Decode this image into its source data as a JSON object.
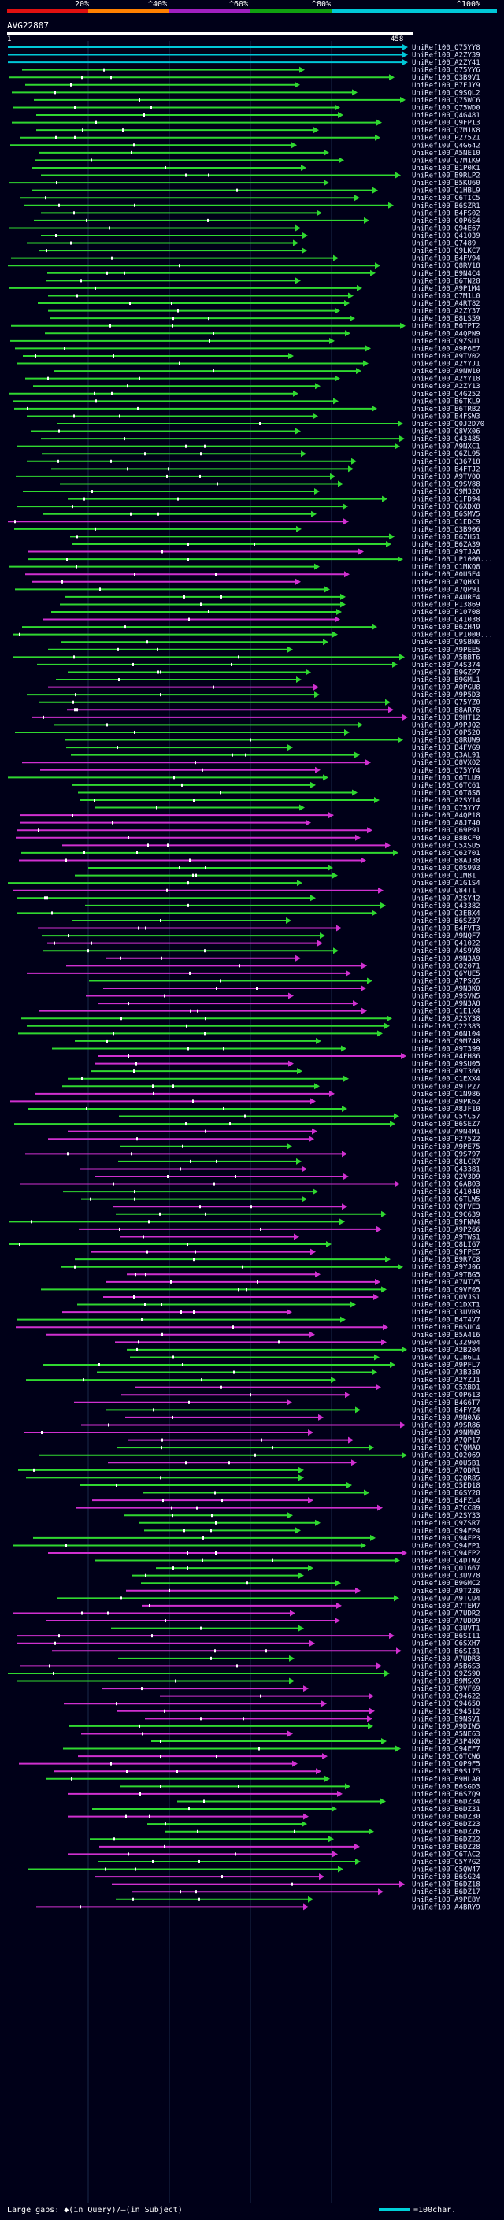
{
  "query": {
    "id": "AVG22807",
    "start": "1",
    "end": "458"
  },
  "scale": {
    "labels": [
      "20%",
      "^40%",
      "^60%",
      "^80%",
      "^100%"
    ],
    "colors": [
      "#e01010",
      "#ff8000",
      "#a020c0",
      "#10a010",
      "#00c8d8"
    ]
  },
  "colors": {
    "high_identity": "#30d830",
    "medium_identity": "#d030d0",
    "top_identity": "#00c8d8",
    "tick": "#ffffff"
  },
  "hits": [
    "UniRef100_Q75YY8",
    "UniRef100_A2ZY39",
    "UniRef100_A2ZY41",
    "UniRef100_Q75YY6",
    "UniRef100_Q3B9V1",
    "UniRef100_B7FJY9",
    "UniRef100_Q9SQL2",
    "UniRef100_Q75WC6",
    "UniRef100_Q75WD0",
    "UniRef100_Q4G481",
    "UniRef100_Q9FPI3",
    "UniRef100_Q7M1K8",
    "UniRef100_P27521",
    "UniRef100_Q4G642",
    "UniRef100_A5NE10",
    "UniRef100_Q7M1K9",
    "UniRef100_B1P0K1",
    "UniRef100_B9RLP2",
    "UniRef100_B5KU60",
    "UniRef100_Q1HBL9",
    "UniRef100_C6TIC5",
    "UniRef100_B6SZR1",
    "UniRef100_B4FS02",
    "UniRef100_C0P6S4",
    "UniRef100_Q94E67",
    "UniRef100_Q41039",
    "UniRef100_Q7489",
    "UniRef100_Q9LKC7",
    "UniRef100_B4FV94",
    "UniRef100_Q8RV18",
    "UniRef100_B9N4C4",
    "UniRef100_B6TN28",
    "UniRef100_A9P1M4",
    "UniRef100_Q7M1L0",
    "UniRef100_A4RT82",
    "UniRef100_A2ZY37",
    "UniRef100_B8LS59",
    "UniRef100_B6TPT2",
    "UniRef100_A4QPN9",
    "UniRef100_Q9ZSU1",
    "UniRef100_A9P6E7",
    "UniRef100_A9TV02",
    "UniRef100_A2YYJ1",
    "UniRef100_A9NW10",
    "UniRef100_A2YY18",
    "UniRef100_A2ZY13",
    "UniRef100_Q4G252",
    "UniRef100_B6TKL9",
    "UniRef100_B6TRB2",
    "UniRef100_B4FSW3",
    "UniRef100_Q0J2D70",
    "UniRef100_Q8VX06",
    "UniRef100_Q43485",
    "UniRef100_A9NXC1",
    "UniRef100_Q6ZL95",
    "UniRef100_Q36718",
    "UniRef100_B4FTJ2",
    "UniRef100_A9TV00",
    "UniRef100_Q9SV88",
    "UniRef100_Q9M320",
    "UniRef100_C1FD94",
    "UniRef100_Q6XDX8",
    "UniRef100_B6SMV5",
    "UniRef100_C1EDC9",
    "UniRef100_Q3B906",
    "UniRef100_B6ZH51",
    "UniRef100_B6ZA39",
    "UniRef100_A9TJA6",
    "UniRef100_UP1000...",
    "UniRef100_C1MKQ8",
    "UniRef100_A0U5E4",
    "UniRef100_A7QHX1",
    "UniRef100_A7QP91",
    "UniRef100_A4URF4",
    "UniRef100_P13869",
    "UniRef100_P10708",
    "UniRef100_Q41038",
    "UniRef100_B6ZH49",
    "UniRef100_UP1000...",
    "UniRef100_Q9SBN6",
    "UniRef100_A9PEE5",
    "UniRef100_A5BBT6",
    "UniRef100_A4S374",
    "UniRef100_B9GZP7",
    "UniRef100_B9GML1",
    "UniRef100_A0PGU8",
    "UniRef100_A9P5D3",
    "UniRef100_Q75YZ0",
    "UniRef100_B8AR76",
    "UniRef100_B9HT12",
    "UniRef100_A9PJQ2",
    "UniRef100_C0P520",
    "UniRef100_Q8RUW9",
    "UniRef100_B4FVG9",
    "UniRef100_Q3AL91",
    "UniRef100_Q8VX02",
    "UniRef100_Q75YY4",
    "UniRef100_C6TLU9",
    "UniRef100_C6TC61",
    "UniRef100_C6T8S8",
    "UniRef100_A2SY14",
    "UniRef100_Q75YY7",
    "UniRef100_A4QP18",
    "UniRef100_A8J740",
    "UniRef100_Q69P91",
    "UniRef100_B8BCF0",
    "UniRef100_C5XSU5",
    "UniRef100_Q62701",
    "UniRef100_B8AJ38",
    "UniRef100_Q0S993",
    "UniRef100_Q1MB1",
    "UniRef100_A1G1S4",
    "UniRef100_Q84T1",
    "UniRef100_A2SY42",
    "UniRef100_Q43382",
    "UniRef100_Q3EBX4",
    "UniRef100_B6SZ37",
    "UniRef100_B4FVT3",
    "UniRef100_A9NQF7",
    "UniRef100_Q41022",
    "UniRef100_A4S9V8",
    "UniRef100_A9N3A9",
    "UniRef100_Q02071",
    "UniRef100_Q6YUE5",
    "UniRef100_A7PSQ5",
    "UniRef100_A9N3K0",
    "UniRef100_A9SVN5",
    "UniRef100_A9N3A8",
    "UniRef100_C1E1X4",
    "UniRef100_A2SY38",
    "UniRef100_Q22383",
    "UniRef100_A6N104",
    "UniRef100_Q9M748",
    "UniRef100_A9T399",
    "UniRef100_A4FH86",
    "UniRef100_A9SU05",
    "UniRef100_A9T366",
    "UniRef100_C1EXX4",
    "UniRef100_A9TP27",
    "UniRef100_C1N986",
    "UniRef100_A9PK62",
    "UniRef100_A8JF10",
    "UniRef100_C5YC57",
    "UniRef100_B6SEZ7",
    "UniRef100_A9N4M1",
    "UniRef100_P27522",
    "UniRef100_A9PE75",
    "UniRef100_Q9S797",
    "UniRef100_Q8LCR7",
    "UniRef100_Q43381",
    "UniRef100_Q2V3D9",
    "UniRef100_Q6ABO3",
    "UniRef100_Q41040",
    "UniRef100_C6TLW5",
    "UniRef100_Q9FVE3",
    "UniRef100_Q9C639",
    "UniRef100_B9FNW4",
    "UniRef100_A9P266",
    "UniRef100_A9TWS1",
    "UniRef100_Q8LIG7",
    "UniRef100_Q9FPE5",
    "UniRef100_B9R7C8",
    "UniRef100_A9YJ06",
    "UniRef100_A9TBG5",
    "UniRef100_A7NTV5",
    "UniRef100_Q9VF05",
    "UniRef100_Q0VJS1",
    "UniRef100_C1DXT1",
    "UniRef100_C3UVR9",
    "UniRef100_B4T4V7",
    "UniRef100_B6SUC4",
    "UniRef100_B5A416",
    "UniRef100_Q32904",
    "UniRef100_A2B204",
    "UniRef100_Q1B6L1",
    "UniRef100_A9PFL7",
    "UniRef100_A3B330",
    "UniRef100_A2YZJ1",
    "UniRef100_C5XBD1",
    "UniRef100_C0P613",
    "UniRef100_B4G6T7",
    "UniRef100_B4FYZ4",
    "UniRef100_A9N0A6",
    "UniRef100_A9SR86",
    "UniRef100_A9NMN9",
    "UniRef100_A7QP17",
    "UniRef100_Q7QMA0",
    "UniRef100_Q02069",
    "UniRef100_A0U5B1",
    "UniRef100_A7QDR1",
    "UniRef100_Q2QR85",
    "UniRef100_Q5ED18",
    "UniRef100_B6SY28",
    "UniRef100_B4FZL4",
    "UniRef100_A7CC89",
    "UniRef100_A2SY33",
    "UniRef100_Q9ZSR7",
    "UniRef100_Q94FP4",
    "UniRef100_Q94FP3",
    "UniRef100_Q94FP1",
    "UniRef100_Q94FP2",
    "UniRef100_Q4DTW2",
    "UniRef100_Q01667",
    "UniRef100_C3UV78",
    "UniRef100_B9GMC2",
    "UniRef100_A9T226",
    "UniRef100_A9TCU4",
    "UniRef100_A7TEM7",
    "UniRef100_A7UDR2",
    "UniRef100_A7UDD9",
    "UniRef100_C3UVT1",
    "UniRef100_B6SI11",
    "UniRef100_C6SXH7",
    "UniRef100_B6SI31",
    "UniRef100_A7UDR3",
    "UniRef100_A5B6S3",
    "UniRef100_Q9ZS90",
    "UniRef100_B9MSX9",
    "UniRef100_Q9VF69",
    "UniRef100_Q94622",
    "UniRef100_Q94650",
    "UniRef100_Q94512",
    "UniRef100_B9NSV1",
    "UniRef100_A9DIW5",
    "UniRef100_A5NE63",
    "UniRef100_A3P4K0",
    "UniRef100_Q94EF7",
    "UniRef100_C6TCW6",
    "UniRef100_C0P9F5",
    "UniRef100_B9S175",
    "UniRef100_B9HLA0",
    "UniRef100_B6SGD3",
    "UniRef100_B6SZQ9",
    "UniRef100_B6DZ34",
    "UniRef100_B6DZ31",
    "UniRef100_B6DZ30",
    "UniRef100_B6DZ23",
    "UniRef100_B6DZ26",
    "UniRef100_B6DZ22",
    "UniRef100_B6DZ28",
    "UniRef100_C6TAC2",
    "UniRef100_C5Y7G2",
    "UniRef100_C5QW47",
    "UniRef100_B6SG24",
    "UniRef100_B6DZ18",
    "UniRef100_B6DZ17",
    "UniRef100_A9PE8Y",
    "UniRef100_A4BRY9"
  ],
  "legend": {
    "gaps_label": "Large gaps:",
    "query_symbol": "◆",
    "query_text": "(in Query)",
    "separator": "/",
    "subject_symbol": "–",
    "subject_text": "(in Subject)",
    "scale_text": "=100char."
  }
}
